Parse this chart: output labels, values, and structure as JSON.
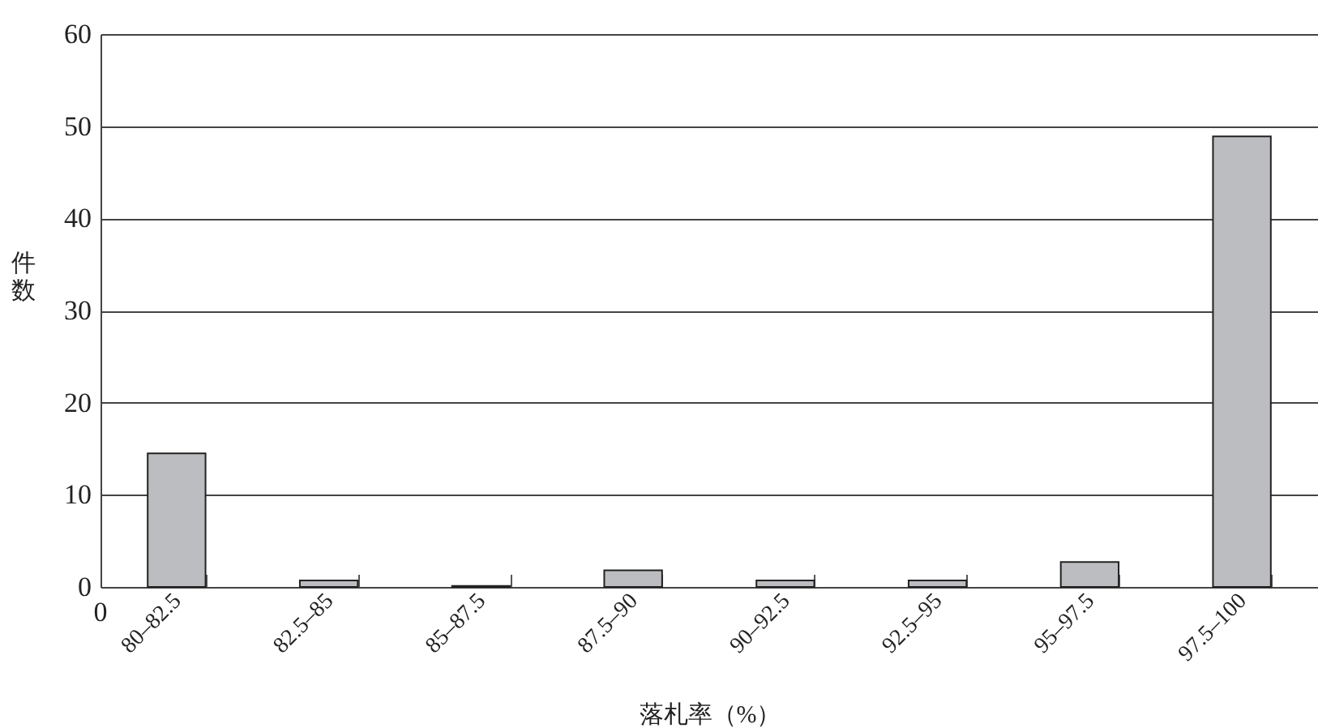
{
  "chart_data": {
    "type": "bar",
    "xlabel": "落札率（%）",
    "ylabel": "件数",
    "categories": [
      "80–82.5",
      "82.5–85",
      "85–87.5",
      "87.5–90",
      "90–92.5",
      "92.5–95",
      "95–97.5",
      "97.5–100"
    ],
    "values": [
      14.5,
      0.7,
      0.1,
      1.8,
      0.7,
      0.7,
      2.7,
      48.9
    ],
    "color": "#bcbdc0",
    "ylim": [
      0,
      60
    ],
    "yticks": [
      0,
      10,
      20,
      30,
      40,
      50,
      60
    ],
    "grid": "y",
    "annotations": [
      "0"
    ]
  }
}
